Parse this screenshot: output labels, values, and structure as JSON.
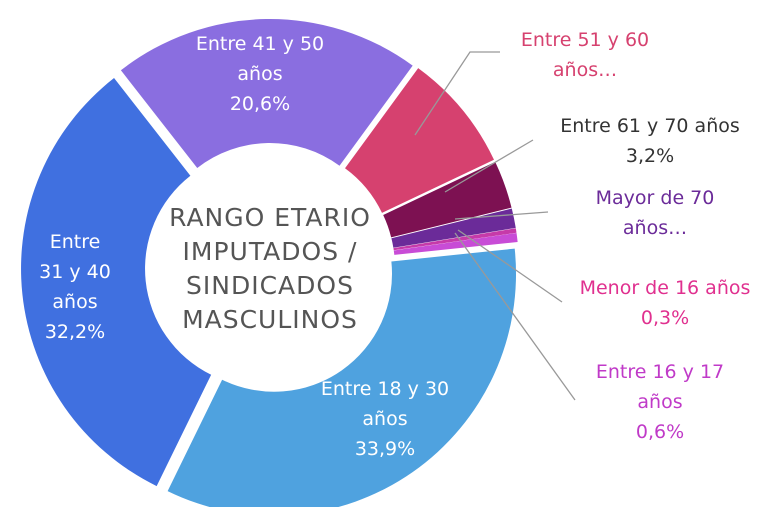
{
  "chart_data": {
    "type": "donut",
    "title": "RANGO ETARIO IMPUTADOS / SINDICADOS MASCULINOS",
    "categories": [
      "Entre 41 y 50 años",
      "Entre 51 y 60 años…",
      "Entre 61 y 70 años",
      "Mayor de 70 años…",
      "Menor de 16 años",
      "Entre 16 y 17 años",
      "Entre 18 y 30 años",
      "Entre 31 y 40 años"
    ],
    "values": [
      20.6,
      7.9,
      3.2,
      1.3,
      0.3,
      0.6,
      33.9,
      32.2
    ],
    "value_labels": [
      "20,6%",
      null,
      "3,2%",
      null,
      "0,3%",
      "0,6%",
      "33,9%",
      "32,2%"
    ],
    "colors": [
      "#8a6ee0",
      "#d6416f",
      "#7d1152",
      "#6b2b99",
      "#c63aa9",
      "#c84cd6",
      "#4fa2df",
      "#4070e0"
    ]
  }
}
